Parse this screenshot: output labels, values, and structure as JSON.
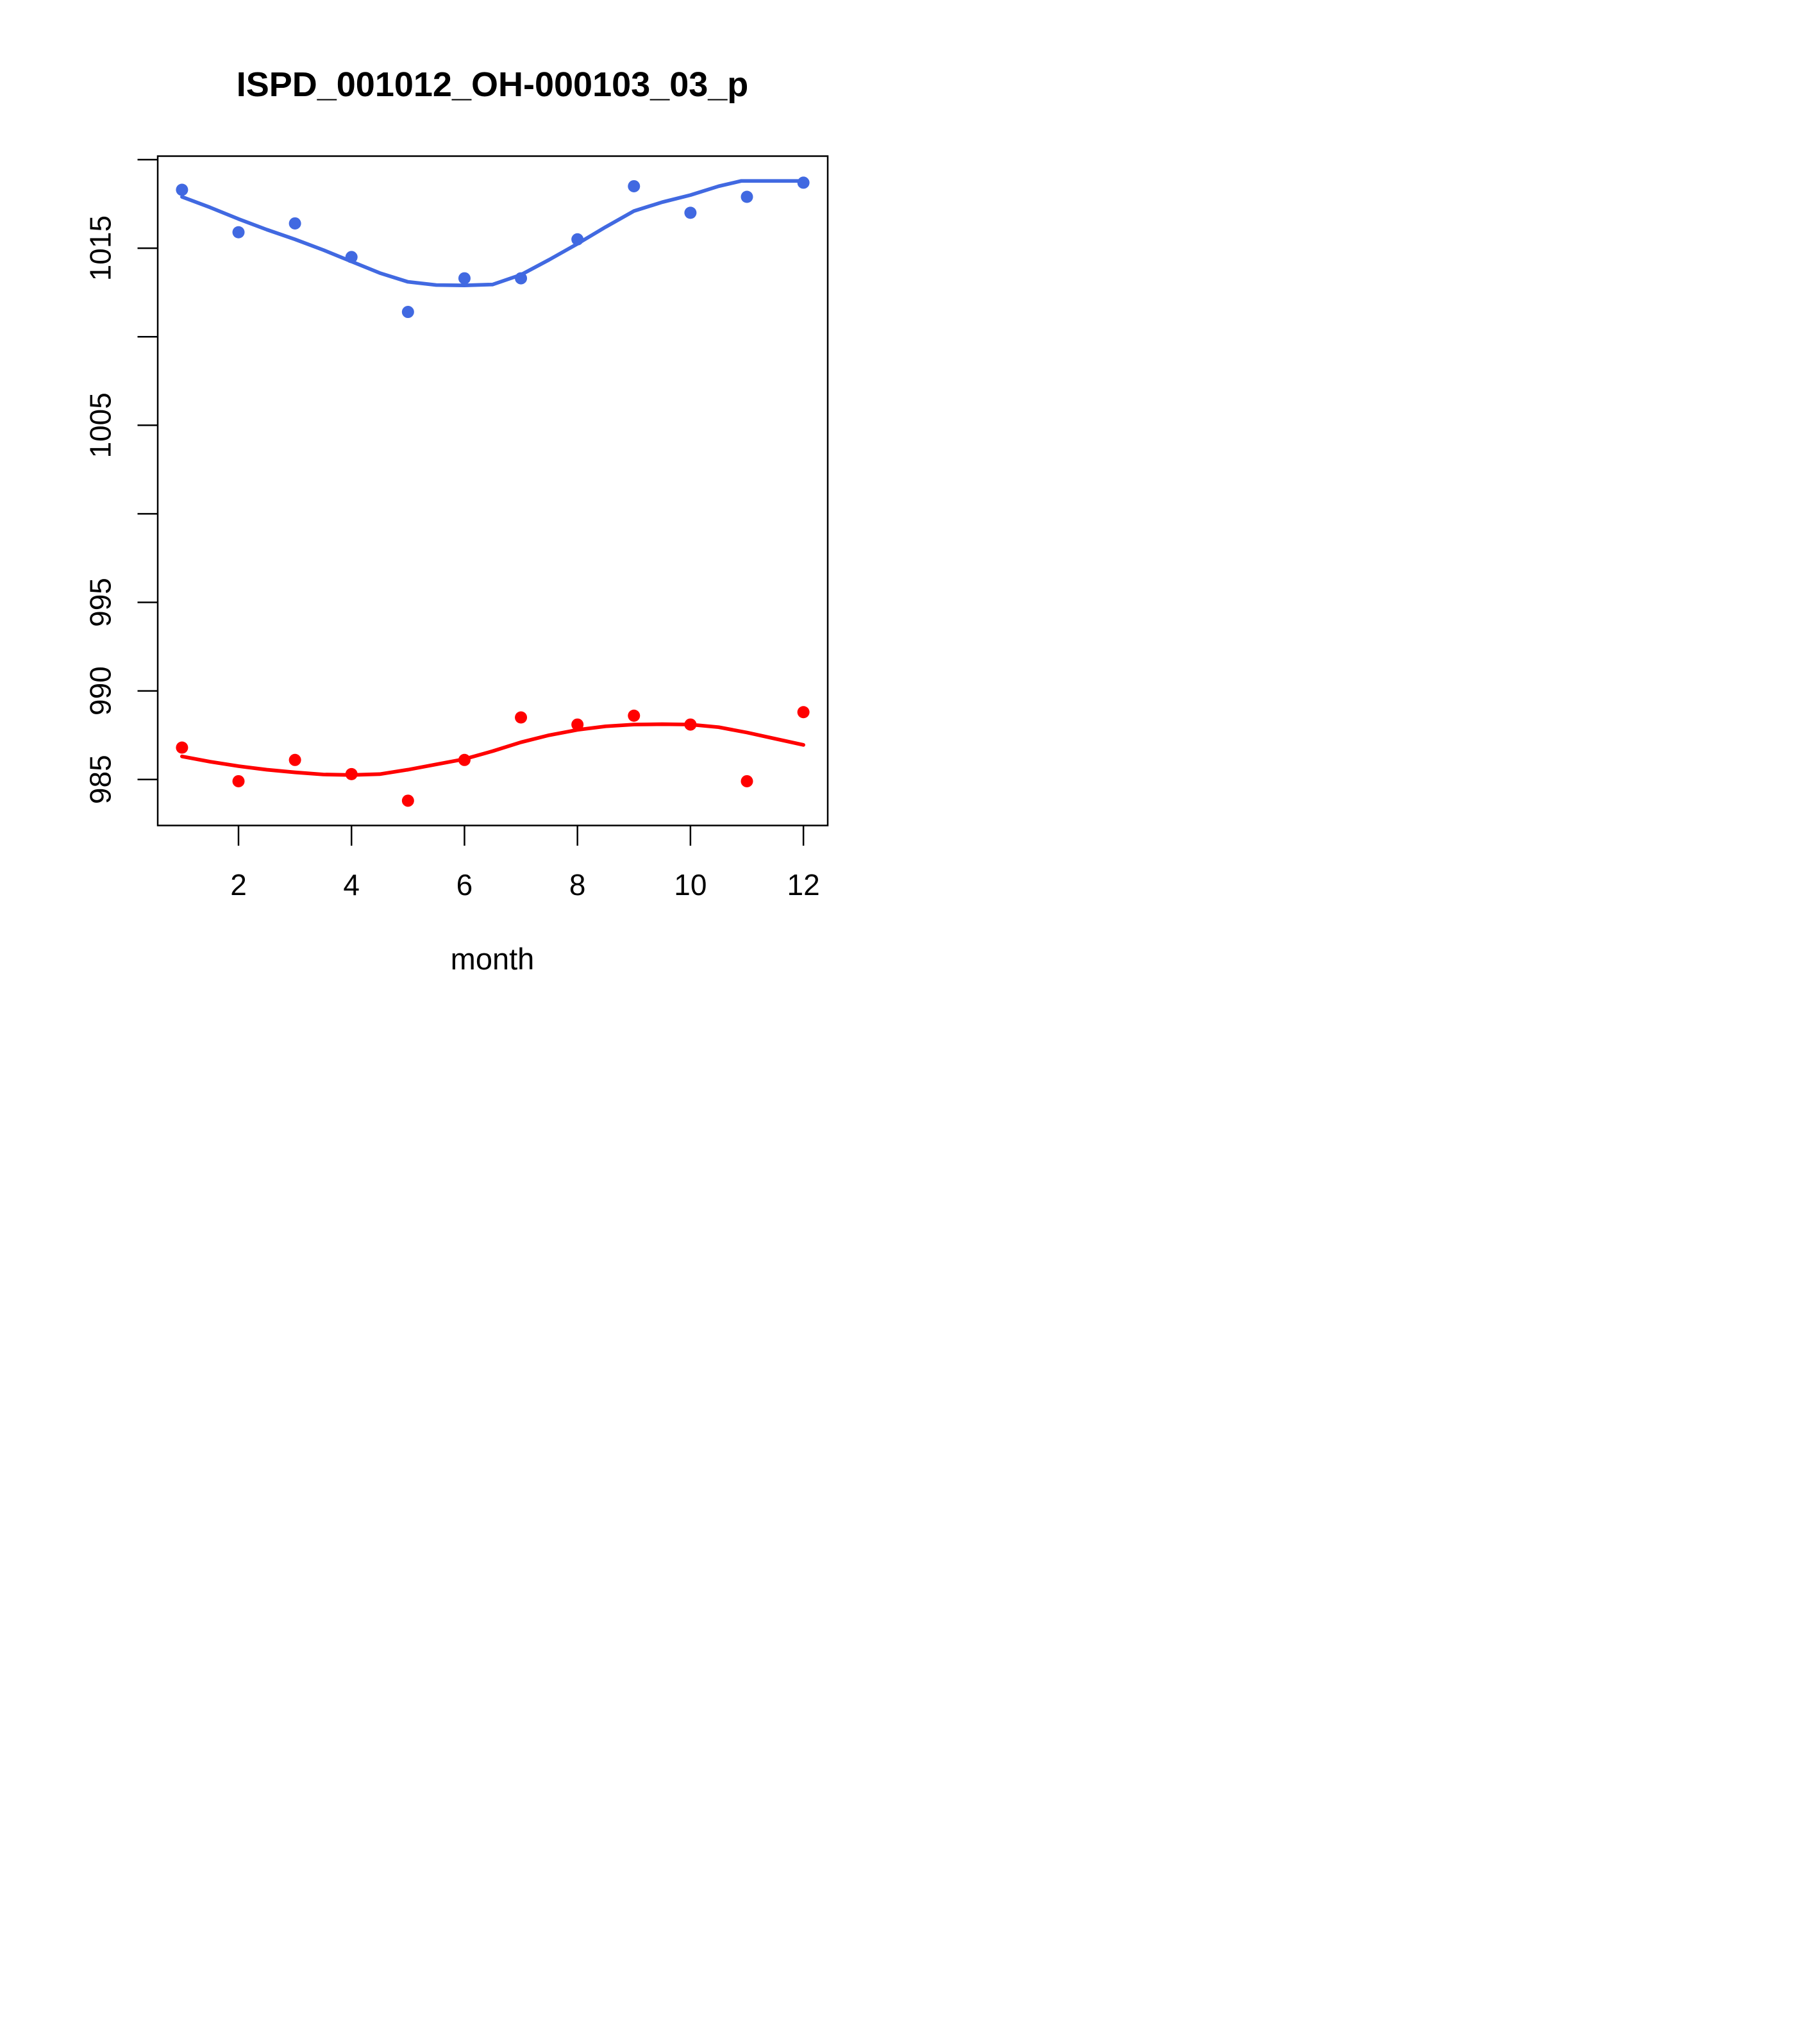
{
  "page": {
    "background": "#ffffff"
  },
  "colors": {
    "axis": "#000000",
    "blue": "#4169E1",
    "red": "#FF0000"
  },
  "chart_data": {
    "type": "scatter",
    "title": "ISPD_001012_OH-000103_03_p",
    "xlabel": "month",
    "ylabel": "",
    "grid": false,
    "legend": "none",
    "xlim": [
      0.57,
      12.43
    ],
    "ylim": [
      982.4,
      1020.2
    ],
    "x_ticks": [
      {
        "v": 2,
        "label": "2"
      },
      {
        "v": 4,
        "label": "4"
      },
      {
        "v": 6,
        "label": "6"
      },
      {
        "v": 8,
        "label": "8"
      },
      {
        "v": 10,
        "label": "10"
      },
      {
        "v": 12,
        "label": "12"
      }
    ],
    "y_ticks": [
      {
        "v": 985,
        "label": "985"
      },
      {
        "v": 990,
        "label": "990"
      },
      {
        "v": 995,
        "label": "995"
      },
      {
        "v": 1000,
        "label": ""
      },
      {
        "v": 1005,
        "label": "1005"
      },
      {
        "v": 1010,
        "label": ""
      },
      {
        "v": 1015,
        "label": "1015"
      },
      {
        "v": 1020,
        "label": ""
      }
    ],
    "series": [
      {
        "name": "blue-points",
        "kind": "points",
        "color": "#4169E1",
        "x": [
          1,
          2,
          3,
          4,
          5,
          6,
          7,
          8,
          9,
          10,
          11,
          12
        ],
        "y": [
          1018.3,
          1015.9,
          1016.4,
          1014.5,
          1011.4,
          1013.3,
          1013.3,
          1015.5,
          1018.5,
          1017.0,
          1017.9,
          1018.7
        ]
      },
      {
        "name": "blue-smooth",
        "kind": "line",
        "color": "#4169E1",
        "points": [
          [
            1,
            1017.9
          ],
          [
            1.5,
            1017.3
          ],
          [
            2,
            1016.65
          ],
          [
            2.5,
            1016.05
          ],
          [
            3,
            1015.5
          ],
          [
            3.5,
            1014.9
          ],
          [
            4,
            1014.25
          ],
          [
            4.5,
            1013.6
          ],
          [
            5,
            1013.1
          ],
          [
            5.5,
            1012.92
          ],
          [
            6,
            1012.9
          ],
          [
            6.5,
            1012.95
          ],
          [
            7,
            1013.5
          ],
          [
            7.5,
            1014.35
          ],
          [
            8,
            1015.25
          ],
          [
            8.5,
            1016.2
          ],
          [
            9,
            1017.1
          ],
          [
            9.5,
            1017.6
          ],
          [
            10,
            1018.0
          ],
          [
            10.5,
            1018.5
          ],
          [
            10.9,
            1018.8
          ],
          [
            11.5,
            1018.8
          ],
          [
            12,
            1018.8
          ]
        ]
      },
      {
        "name": "red-points",
        "kind": "points",
        "color": "#FF0000",
        "x": [
          1,
          2,
          3,
          4,
          5,
          6,
          7,
          8,
          9,
          10,
          11,
          12
        ],
        "y": [
          986.8,
          984.9,
          986.1,
          985.3,
          983.8,
          986.1,
          988.5,
          988.1,
          988.6,
          988.1,
          984.9,
          988.8
        ]
      },
      {
        "name": "red-smooth",
        "kind": "line",
        "color": "#FF0000",
        "points": [
          [
            1,
            986.3
          ],
          [
            1.5,
            986.0
          ],
          [
            2,
            985.75
          ],
          [
            2.5,
            985.55
          ],
          [
            3,
            985.4
          ],
          [
            3.5,
            985.28
          ],
          [
            4,
            985.25
          ],
          [
            4.5,
            985.3
          ],
          [
            5,
            985.55
          ],
          [
            5.5,
            985.85
          ],
          [
            6,
            986.15
          ],
          [
            6.5,
            986.6
          ],
          [
            7,
            987.1
          ],
          [
            7.5,
            987.5
          ],
          [
            8,
            987.8
          ],
          [
            8.5,
            988.0
          ],
          [
            9,
            988.1
          ],
          [
            9.5,
            988.12
          ],
          [
            10,
            988.1
          ],
          [
            10.5,
            987.95
          ],
          [
            11,
            987.65
          ],
          [
            11.5,
            987.3
          ],
          [
            12,
            986.95
          ]
        ]
      }
    ]
  }
}
